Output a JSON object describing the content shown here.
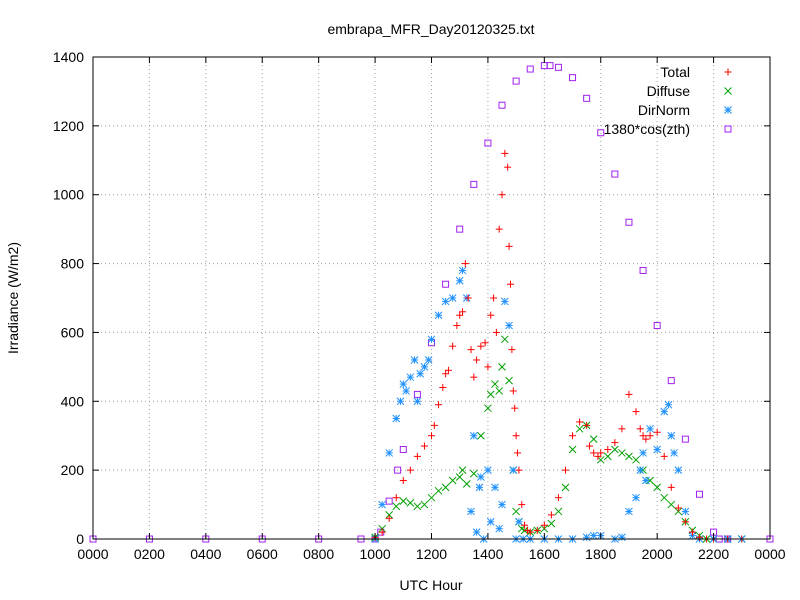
{
  "chart_data": {
    "type": "scatter",
    "title": "embrapa_MFR_Day20120325.txt",
    "xlabel": "UTC Hour",
    "ylabel": "Irradiance (W/m2)",
    "xlim": [
      0,
      24
    ],
    "ylim": [
      0,
      1400
    ],
    "x_ticks": [
      0,
      2,
      4,
      6,
      8,
      10,
      12,
      14,
      16,
      18,
      20,
      22,
      24
    ],
    "x_tick_labels": [
      "0000",
      "0200",
      "0400",
      "0600",
      "0800",
      "1000",
      "1200",
      "1400",
      "1600",
      "1800",
      "2000",
      "2200",
      "0000"
    ],
    "y_ticks": [
      0,
      200,
      400,
      600,
      800,
      1000,
      1200,
      1400
    ],
    "y_tick_labels": [
      "0",
      "200",
      "400",
      "600",
      "800",
      "1000",
      "1200",
      "1400"
    ],
    "grid": true,
    "legend_position": "top-right",
    "series": [
      {
        "name": "Total",
        "color": "#ff0000",
        "marker": "plus",
        "x": [
          10.0,
          10.25,
          10.5,
          10.75,
          11.0,
          11.25,
          11.5,
          11.75,
          12.0,
          12.1,
          12.25,
          12.4,
          12.5,
          12.6,
          12.75,
          12.9,
          13.0,
          13.1,
          13.2,
          13.3,
          13.4,
          13.5,
          13.6,
          13.75,
          13.9,
          14.0,
          14.1,
          14.2,
          14.3,
          14.4,
          14.5,
          14.6,
          14.7,
          14.75,
          14.8,
          14.85,
          14.9,
          14.95,
          15.0,
          15.05,
          15.1,
          15.2,
          15.3,
          15.4,
          15.5,
          15.75,
          16.0,
          16.25,
          16.5,
          16.75,
          17.0,
          17.25,
          17.5,
          17.6,
          17.75,
          17.9,
          18.0,
          18.25,
          18.5,
          18.75,
          19.0,
          19.25,
          19.4,
          19.5,
          19.6,
          19.75,
          20.0,
          20.25,
          20.5,
          20.75,
          21.0,
          21.25,
          21.5,
          21.75,
          22.0,
          22.5,
          23.0
        ],
        "y": [
          5,
          20,
          60,
          120,
          170,
          200,
          240,
          270,
          300,
          330,
          390,
          440,
          480,
          490,
          560,
          620,
          650,
          660,
          800,
          700,
          550,
          470,
          520,
          560,
          570,
          500,
          650,
          700,
          600,
          900,
          1000,
          1120,
          1080,
          850,
          740,
          550,
          430,
          380,
          300,
          250,
          200,
          100,
          40,
          25,
          20,
          25,
          40,
          70,
          120,
          200,
          300,
          340,
          330,
          270,
          250,
          240,
          250,
          260,
          280,
          320,
          420,
          370,
          320,
          300,
          290,
          300,
          310,
          240,
          150,
          90,
          50,
          20,
          5,
          0,
          0,
          0,
          0
        ]
      },
      {
        "name": "Diffuse",
        "color": "#00a000",
        "marker": "cross",
        "x": [
          10.0,
          10.25,
          10.5,
          10.75,
          11.0,
          11.25,
          11.5,
          11.75,
          12.0,
          12.25,
          12.5,
          12.75,
          13.0,
          13.1,
          13.25,
          13.5,
          13.75,
          14.0,
          14.1,
          14.25,
          14.4,
          14.5,
          14.6,
          14.75,
          14.9,
          15.0,
          15.1,
          15.2,
          15.3,
          15.5,
          15.75,
          16.0,
          16.25,
          16.5,
          16.75,
          17.0,
          17.25,
          17.5,
          17.75,
          18.0,
          18.25,
          18.5,
          18.75,
          19.0,
          19.25,
          19.5,
          19.75,
          20.0,
          20.25,
          20.5,
          20.75,
          21.0,
          21.25,
          21.5,
          21.75,
          22.0,
          22.5,
          23.0
        ],
        "y": [
          5,
          30,
          70,
          95,
          110,
          105,
          95,
          100,
          120,
          140,
          150,
          170,
          180,
          200,
          160,
          190,
          300,
          380,
          420,
          450,
          430,
          500,
          580,
          460,
          200,
          80,
          50,
          30,
          25,
          20,
          25,
          30,
          45,
          80,
          150,
          260,
          320,
          330,
          290,
          230,
          240,
          260,
          250,
          240,
          230,
          200,
          170,
          150,
          120,
          100,
          80,
          50,
          25,
          10,
          0,
          0,
          0,
          0
        ]
      },
      {
        "name": "DirNorm",
        "color": "#1e90ff",
        "marker": "star",
        "x": [
          10.0,
          10.25,
          10.5,
          10.75,
          10.9,
          11.0,
          11.1,
          11.25,
          11.4,
          11.5,
          11.6,
          11.75,
          11.9,
          12.0,
          12.25,
          12.5,
          12.75,
          13.0,
          13.1,
          13.25,
          13.4,
          13.5,
          13.6,
          13.7,
          13.75,
          13.85,
          14.0,
          14.1,
          14.25,
          14.4,
          14.5,
          14.6,
          14.75,
          14.9,
          15.0,
          15.1,
          15.25,
          15.5,
          16.0,
          16.5,
          17.0,
          17.5,
          17.75,
          18.0,
          18.5,
          18.75,
          19.0,
          19.25,
          19.4,
          19.5,
          19.6,
          19.75,
          20.0,
          20.25,
          20.4,
          20.5,
          20.6,
          20.75,
          21.0,
          21.25,
          21.5,
          22.0,
          22.5,
          23.0
        ],
        "y": [
          0,
          100,
          250,
          350,
          400,
          450,
          430,
          470,
          520,
          400,
          480,
          500,
          520,
          580,
          650,
          690,
          700,
          750,
          780,
          700,
          80,
          300,
          20,
          150,
          180,
          0,
          200,
          50,
          150,
          30,
          100,
          690,
          620,
          200,
          0,
          50,
          0,
          0,
          0,
          0,
          0,
          5,
          10,
          10,
          0,
          5,
          80,
          120,
          200,
          250,
          170,
          320,
          260,
          370,
          390,
          300,
          250,
          200,
          80,
          10,
          0,
          0,
          0,
          0
        ]
      },
      {
        "name": "1380*cos(zth)",
        "color": "#a020f0",
        "marker": "square",
        "x": [
          0,
          2,
          4,
          6,
          8,
          9.5,
          10.0,
          10.2,
          10.5,
          10.8,
          11.0,
          11.5,
          12.0,
          12.5,
          13.0,
          13.5,
          14.0,
          14.5,
          15.0,
          15.5,
          16.0,
          16.2,
          16.5,
          17.0,
          17.5,
          18.0,
          18.5,
          19.0,
          19.5,
          20.0,
          20.5,
          21.0,
          21.5,
          22.0,
          22.2,
          22.5,
          24.0
        ],
        "y": [
          0,
          0,
          0,
          0,
          0,
          0,
          0,
          20,
          110,
          200,
          260,
          420,
          570,
          740,
          900,
          1030,
          1150,
          1260,
          1330,
          1365,
          1375,
          1375,
          1370,
          1340,
          1280,
          1180,
          1060,
          920,
          780,
          620,
          460,
          290,
          130,
          20,
          0,
          0,
          0
        ]
      }
    ]
  }
}
